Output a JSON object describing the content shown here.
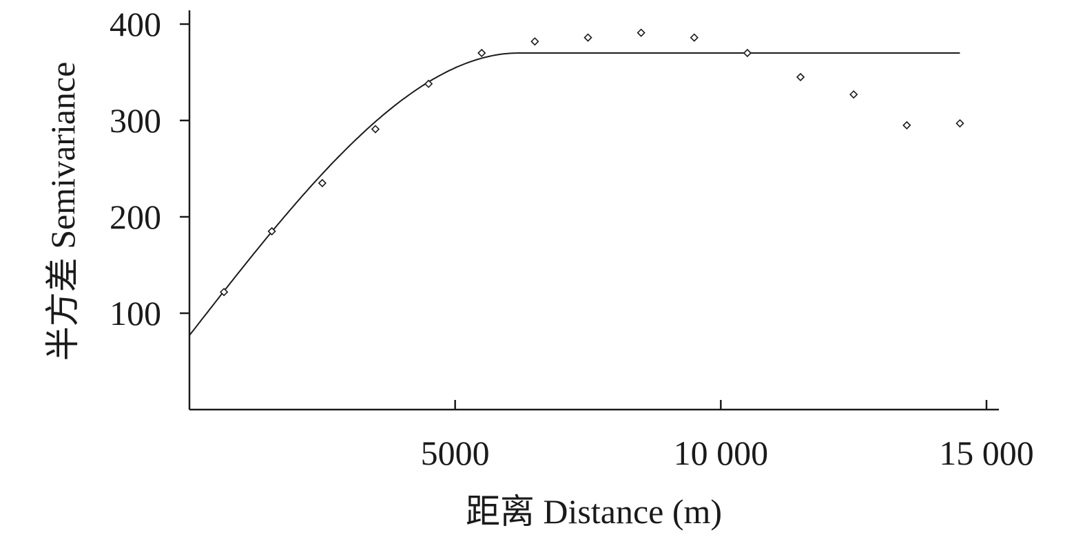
{
  "chart_data": {
    "type": "scatter",
    "xlabel": "距离 Distance (m)",
    "ylabel": "半方差 Semivariance",
    "xlim": [
      0,
      15200
    ],
    "ylim": [
      0,
      400
    ],
    "x_ticks": [
      5000,
      10000,
      15000
    ],
    "x_tick_labels": [
      "5000",
      "10 000",
      "15 000"
    ],
    "y_ticks": [
      100,
      200,
      300,
      400
    ],
    "y_tick_labels": [
      "100",
      "200",
      "300",
      "400"
    ],
    "grid": false,
    "legend": "none",
    "series": [
      {
        "type": "scatter",
        "marker": "diamond-open",
        "x": [
          650,
          1550,
          2500,
          3500,
          4500,
          5500,
          6500,
          7500,
          8500,
          9500,
          10500,
          11500,
          12500,
          13500,
          14500
        ],
        "y": [
          122,
          185,
          235,
          291,
          338,
          370,
          382,
          386,
          391,
          386,
          370,
          345,
          327,
          295,
          297
        ]
      },
      {
        "type": "line",
        "model": "spherical",
        "nugget": 77,
        "sill": 370,
        "range": 6200,
        "x_max": 14500
      }
    ]
  }
}
